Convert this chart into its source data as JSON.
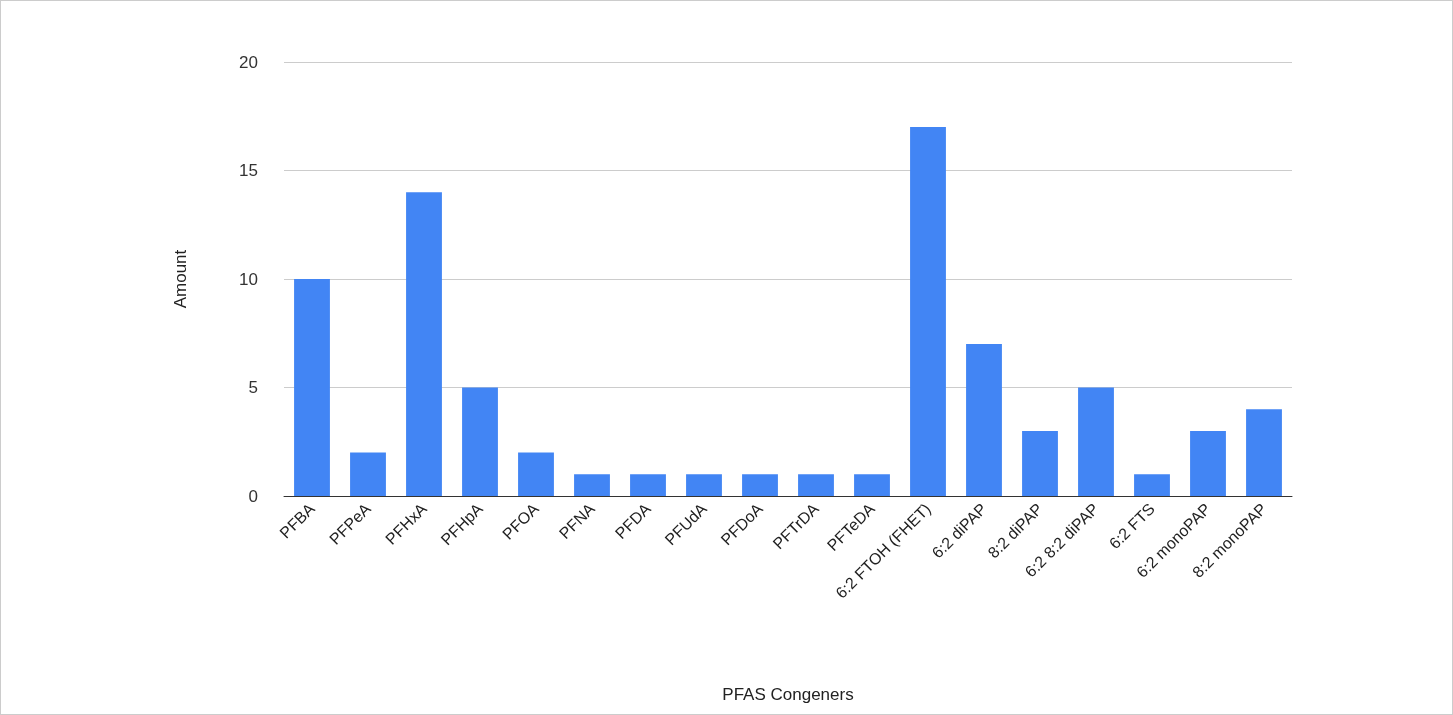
{
  "chart_data": {
    "type": "bar",
    "xlabel": "PFAS Congeners",
    "ylabel": "Amount",
    "categories": [
      "PFBA",
      "PFPeA",
      "PFHxA",
      "PFHpA",
      "PFOA",
      "PFNA",
      "PFDA",
      "PFUdA",
      "PFDoA",
      "PFTrDA",
      "PFTeDA",
      "6:2 FTOH (FHET)",
      "6:2 diPAP",
      "8:2 diPAP",
      "6:2 8:2 diPAP",
      "6:2 FTS",
      "6:2 monoPAP",
      "8:2 monoPAP"
    ],
    "values": [
      10,
      2,
      14,
      5,
      2,
      1,
      1,
      1,
      1,
      1,
      1,
      17,
      7,
      3,
      5,
      1,
      3,
      4
    ],
    "color": "#4285f4",
    "ylim": [
      0,
      20
    ],
    "yticks": [
      0,
      5,
      10,
      15,
      20
    ],
    "grid": "y"
  }
}
